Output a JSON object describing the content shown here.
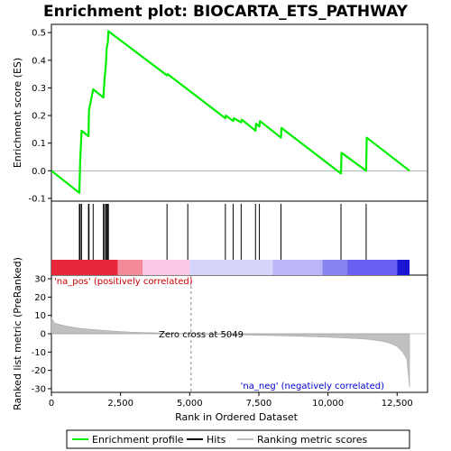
{
  "chart_data": {
    "type": "line",
    "title": "Enrichment plot: BIOCARTA_ETS_PATHWAY",
    "xlabel": "Rank in Ordered Dataset",
    "ylabel_top": "Enrichment score (ES)",
    "ylabel_bottom": "Ranked list metric (PreRanked)",
    "xlim": [
      0,
      13600
    ],
    "x_ticks": [
      0,
      2500,
      5000,
      7500,
      10000,
      12500
    ],
    "x_tick_labels": [
      "0",
      "2,500",
      "5,000",
      "7,500",
      "10,000",
      "12,500"
    ],
    "es_ylim": [
      -0.11,
      0.53
    ],
    "es_ticks": [
      -0.1,
      0.0,
      0.1,
      0.2,
      0.3,
      0.4,
      0.5
    ],
    "es_tick_labels": [
      "-0.1",
      "0.0",
      "0.1",
      "0.2",
      "0.3",
      "0.4",
      "0.5"
    ],
    "metric_ylim": [
      -32,
      32
    ],
    "metric_ticks": [
      30,
      20,
      10,
      0,
      -10,
      -20,
      -30
    ],
    "metric_tick_labels": [
      "30",
      "20",
      "10",
      "0",
      "-10",
      "-20",
      "-30"
    ],
    "series": [
      {
        "name": "Enrichment profile",
        "color": "#00ee00",
        "x": [
          0,
          1010,
          1040,
          1090,
          1340,
          1360,
          1510,
          1880,
          1920,
          1970,
          2000,
          2040,
          2060,
          4180,
          4200,
          6290,
          6310,
          6570,
          6600,
          6860,
          6880,
          7380,
          7400,
          7520,
          7540,
          8300,
          8320,
          10470,
          10490,
          11380,
          11400,
          12950
        ],
        "y": [
          0.0,
          -0.08,
          0.035,
          0.145,
          0.125,
          0.22,
          0.295,
          0.265,
          0.33,
          0.385,
          0.445,
          0.465,
          0.505,
          0.345,
          0.35,
          0.19,
          0.2,
          0.18,
          0.19,
          0.175,
          0.185,
          0.145,
          0.17,
          0.16,
          0.18,
          0.12,
          0.155,
          -0.01,
          0.065,
          0.0,
          0.12,
          0.0
        ]
      }
    ],
    "hits": [
      1010,
      1040,
      1090,
      1340,
      1360,
      1510,
      1880,
      1920,
      1970,
      2000,
      2040,
      2060,
      4180,
      4930,
      6290,
      6570,
      6860,
      7380,
      7520,
      8300,
      10470,
      11380
    ],
    "ranked_metric": {
      "x": [
        0,
        100,
        300,
        600,
        1000,
        1500,
        2000,
        2500,
        3000,
        4000,
        5049,
        6000,
        7000,
        8000,
        9000,
        10000,
        11000,
        11500,
        12000,
        12300,
        12500,
        12700,
        12850,
        12950
      ],
      "y": [
        9,
        6,
        5,
        4,
        3,
        2.3,
        1.7,
        1.2,
        0.8,
        0.4,
        0,
        -0.4,
        -0.7,
        -1.0,
        -1.4,
        -1.9,
        -2.6,
        -3.1,
        -4.2,
        -5.5,
        -7,
        -10,
        -14,
        -29
      ]
    },
    "zero_cross_label": "Zero cross at 5049",
    "zero_cross": 5049,
    "pos_label": "'na_pos' (positively correlated)",
    "neg_label": "'na_neg' (negatively correlated)",
    "pos_label_color": "#cc0000",
    "neg_label_color": "#0000cc",
    "heat_bar": [
      {
        "x0": 0,
        "x1": 2400,
        "color": "#e8273d"
      },
      {
        "x0": 2400,
        "x1": 3300,
        "color": "#f28a98"
      },
      {
        "x0": 3300,
        "x1": 5000,
        "color": "#fbc8e6"
      },
      {
        "x0": 5000,
        "x1": 8000,
        "color": "#d7d4fb"
      },
      {
        "x0": 8000,
        "x1": 9800,
        "color": "#bcb6f6"
      },
      {
        "x0": 9800,
        "x1": 10700,
        "color": "#8985f0"
      },
      {
        "x0": 10700,
        "x1": 12500,
        "color": "#6a5ff0"
      },
      {
        "x0": 12500,
        "x1": 12950,
        "color": "#1a14d4"
      }
    ],
    "legend": [
      {
        "label": "Enrichment profile",
        "color": "#00ee00"
      },
      {
        "label": "Hits",
        "color": "#000000"
      },
      {
        "label": "Ranking metric scores",
        "color": "#bbbbbb"
      }
    ]
  }
}
